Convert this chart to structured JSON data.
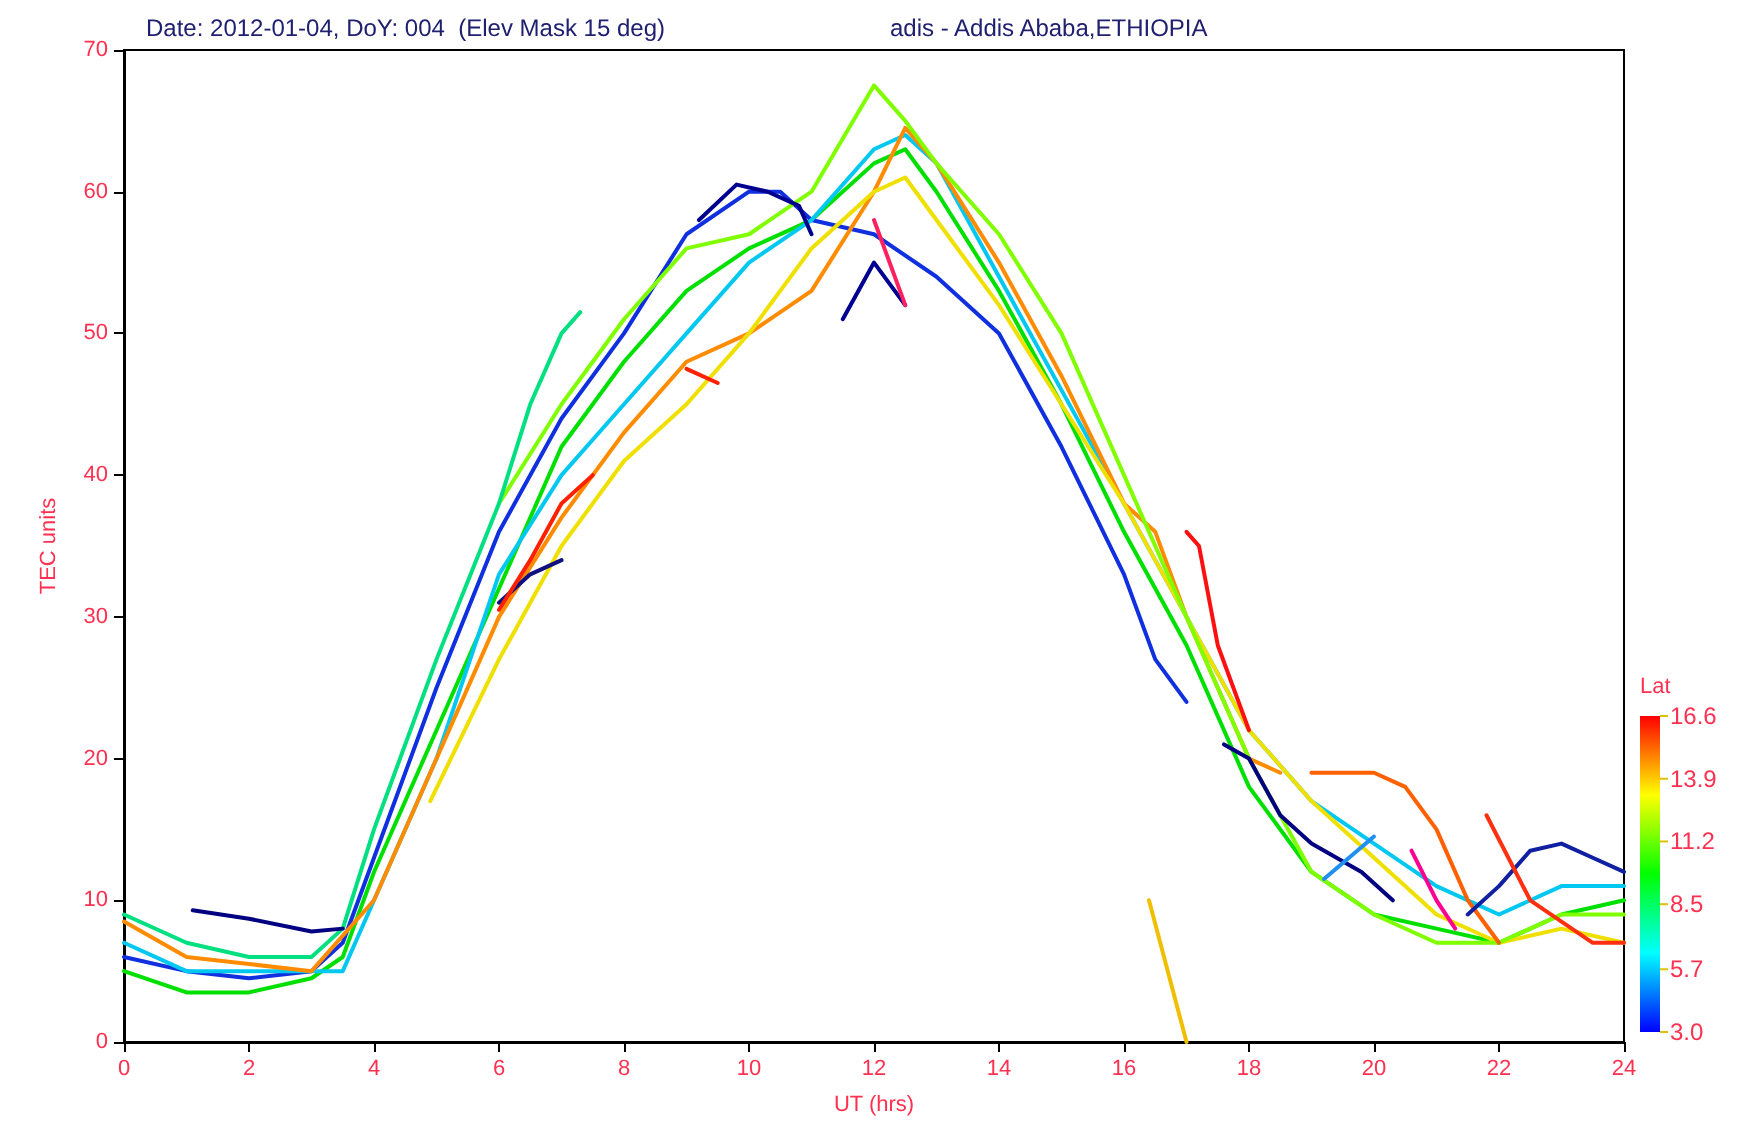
{
  "chart_data": {
    "type": "line",
    "title": "Date: 2012-01-04, DoY: 004  (Elev Mask 15 deg)",
    "subtitle": "adis - Addis Ababa,ETHIOPIA",
    "xlabel": "UT (hrs)",
    "ylabel": "TEC units",
    "clabel": "Lat",
    "clim": [
      3.0,
      16.6
    ],
    "cticks": [
      {
        "value": 3.0,
        "label": "3.0"
      },
      {
        "value": 5.7,
        "label": "5.7"
      },
      {
        "value": 8.5,
        "label": "8.5"
      },
      {
        "value": 11.2,
        "label": "11.2"
      },
      13.9,
      16.6
    ],
    "xlim": [
      0,
      24
    ],
    "xticks": [
      0,
      2,
      4,
      6,
      8,
      10,
      12,
      14,
      16,
      18,
      20,
      22,
      24
    ],
    "ylim": [
      0,
      70
    ],
    "yticks": [
      0,
      10,
      20,
      30,
      40,
      50,
      60,
      70
    ],
    "grid": false,
    "marker": "none",
    "line_style": "solid",
    "series": [
      {
        "color": "#00e000",
        "x": [
          0,
          1,
          2,
          3,
          3.5,
          4,
          5,
          6,
          7,
          8,
          9,
          10,
          11,
          12,
          12.5,
          13,
          14,
          15,
          16,
          17,
          18,
          19,
          20,
          21,
          22,
          23,
          24
        ],
        "values": [
          5,
          3.5,
          3.5,
          4.5,
          6,
          12,
          22,
          32,
          42,
          48,
          53,
          56,
          58,
          62,
          63,
          60,
          53,
          45,
          36,
          28,
          18,
          12,
          9,
          8,
          7,
          9,
          10
        ]
      },
      {
        "color": "#1030e0",
        "x": [
          0,
          1,
          2,
          3,
          3.5,
          4,
          5,
          6,
          7,
          8,
          9,
          10,
          10.5,
          11,
          12,
          13,
          14,
          15,
          16,
          16.5,
          17
        ],
        "values": [
          6,
          5,
          4.5,
          5,
          7,
          13,
          25,
          36,
          44,
          50,
          57,
          60,
          60,
          58,
          57,
          54,
          50,
          42,
          33,
          27,
          24
        ]
      },
      {
        "color": "#00c8f0",
        "x": [
          0,
          1,
          2,
          3,
          3.5,
          4,
          5,
          6,
          7,
          8,
          9,
          10,
          11,
          12,
          12.5,
          13,
          14,
          15,
          16,
          17,
          18,
          19,
          20,
          21,
          22,
          23,
          24
        ],
        "values": [
          7,
          5,
          5,
          5,
          5,
          10,
          20,
          33,
          40,
          45,
          50,
          55,
          58,
          63,
          64,
          62,
          54,
          46,
          38,
          30,
          22,
          17,
          14,
          11,
          9,
          11,
          11
        ]
      },
      {
        "color": "#ff8c00",
        "x": [
          0,
          1,
          2,
          3,
          4,
          5,
          6,
          7,
          8,
          9,
          10,
          11,
          12,
          12.5,
          13,
          14,
          15,
          16,
          16.5,
          17,
          18,
          18.5
        ],
        "values": [
          8.5,
          6,
          5.5,
          5,
          10,
          20,
          30,
          37,
          43,
          48,
          50,
          53,
          60,
          64.5,
          62,
          55,
          47,
          38,
          36,
          30,
          20,
          19
        ]
      },
      {
        "color": "#f0e000",
        "x": [
          4.9,
          6,
          7,
          8,
          9,
          10,
          11,
          12,
          12.5,
          13,
          14,
          15,
          16,
          17,
          18,
          19,
          20,
          21,
          22,
          23,
          24
        ],
        "values": [
          17,
          27,
          35,
          41,
          45,
          50,
          56,
          60,
          61,
          58,
          52,
          45,
          38,
          30,
          22,
          17,
          13,
          9,
          7,
          8,
          7
        ]
      },
      {
        "color": "#80ff00",
        "x": [
          6,
          7,
          8,
          9,
          10,
          11,
          12,
          12.5,
          13,
          14,
          15,
          16,
          17,
          18,
          19,
          20,
          21,
          22,
          23,
          24
        ],
        "values": [
          38,
          45,
          51,
          56,
          57,
          60,
          67.5,
          65,
          62,
          57,
          50,
          40,
          30,
          20,
          12,
          9,
          7,
          7,
          9,
          9
        ]
      },
      {
        "color": "#00e080",
        "x": [
          0,
          1,
          2,
          3,
          3.5,
          4,
          5,
          6,
          6.5,
          7,
          7.3
        ],
        "values": [
          9,
          7,
          6,
          6,
          8,
          15,
          27,
          38,
          45,
          50,
          51.5
        ]
      },
      {
        "color": "#000080",
        "x": [
          1.1,
          2,
          3,
          3.5
        ],
        "values": [
          9.3,
          8.7,
          7.8,
          8
        ]
      },
      {
        "color": "#101080",
        "x": [
          6,
          6.5,
          7
        ],
        "values": [
          31,
          33,
          34
        ]
      },
      {
        "color": "#000090",
        "x": [
          9.2,
          9.8,
          10.3,
          10.8,
          11
        ],
        "values": [
          58,
          60.5,
          60,
          59,
          57
        ]
      },
      {
        "color": "#000090",
        "x": [
          11.5,
          12,
          12.5
        ],
        "values": [
          51,
          55,
          52
        ]
      },
      {
        "color": "#ff2000",
        "x": [
          6,
          6.5,
          7,
          7.5
        ],
        "values": [
          30.5,
          34,
          38,
          40
        ]
      },
      {
        "color": "#ff2000",
        "x": [
          9,
          9.5
        ],
        "values": [
          47.5,
          46.5
        ]
      },
      {
        "color": "#ff2060",
        "x": [
          12,
          12.5
        ],
        "values": [
          58,
          52
        ]
      },
      {
        "color": "#ff1010",
        "x": [
          17,
          17.2,
          17.5,
          18
        ],
        "values": [
          36,
          35,
          28,
          22
        ]
      },
      {
        "color": "#f0c000",
        "x": [
          16.4,
          17
        ],
        "values": [
          10,
          0
        ]
      },
      {
        "color": "#000080",
        "x": [
          17.6,
          18,
          18.5,
          19,
          19.8,
          20.3
        ],
        "values": [
          21,
          20,
          16,
          14,
          12,
          10
        ]
      },
      {
        "color": "#ff6000",
        "x": [
          19,
          20,
          20.5,
          21,
          21.5,
          22
        ],
        "values": [
          19,
          19,
          18,
          15,
          10,
          7
        ]
      },
      {
        "color": "#1020a0",
        "x": [
          21.5,
          22,
          22.5,
          23,
          23.5,
          24
        ],
        "values": [
          9,
          11,
          13.5,
          14,
          13,
          12
        ]
      },
      {
        "color": "#ff3010",
        "x": [
          21.8,
          22.5,
          23.5,
          24
        ],
        "values": [
          16,
          10,
          7,
          7
        ]
      },
      {
        "color": "#ff0090",
        "x": [
          20.6,
          21,
          21.3
        ],
        "values": [
          13.5,
          10,
          8
        ]
      },
      {
        "color": "#2090f0",
        "x": [
          19.2,
          20
        ],
        "values": [
          11.5,
          14.5
        ]
      }
    ]
  }
}
